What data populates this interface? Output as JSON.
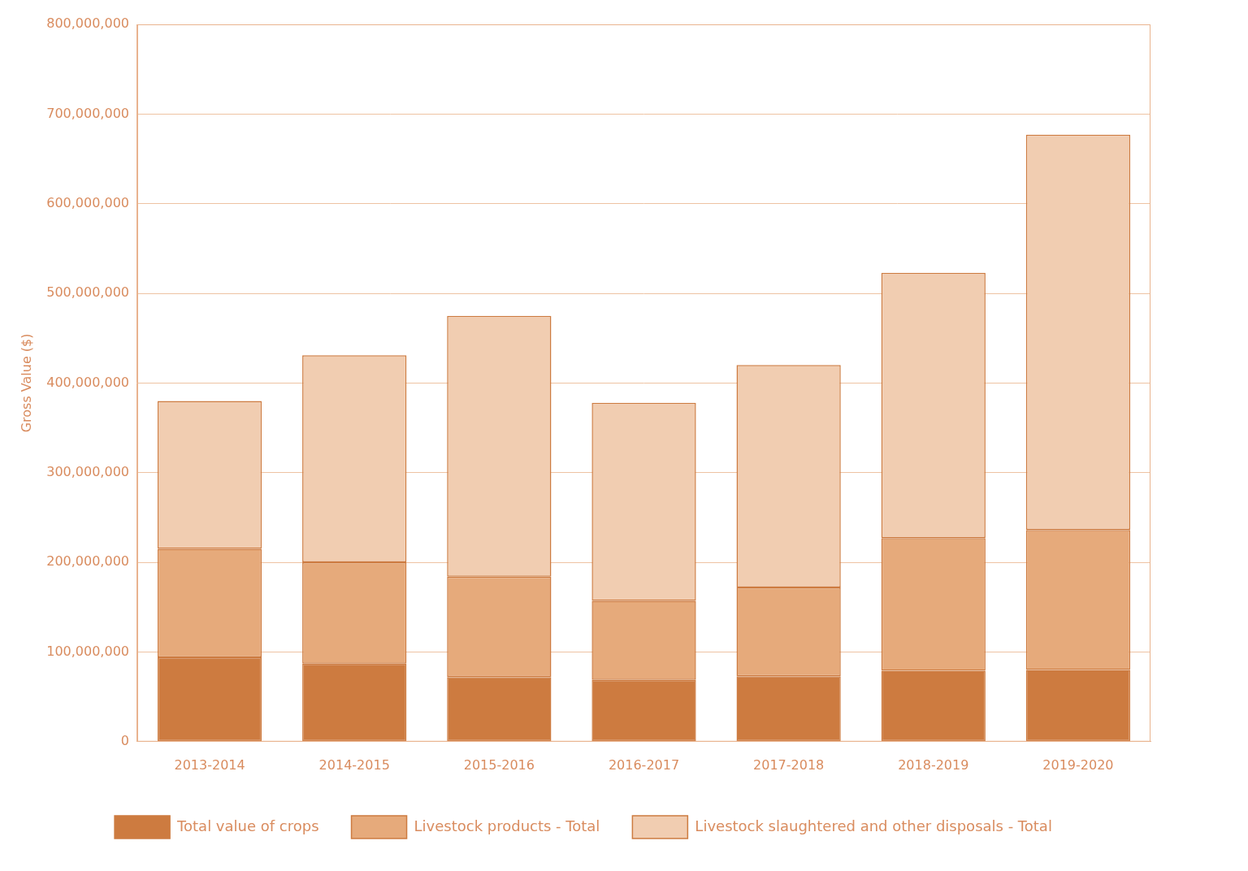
{
  "chart_data": {
    "type": "bar",
    "stacked": true,
    "grid": true,
    "legend": "bottom",
    "y_label": "Gross Value ($)",
    "categories": [
      "2013-2014",
      "2014-2015",
      "2015-2016",
      "2016-2017",
      "2017-2018",
      "2018-2019",
      "2019-2020"
    ],
    "series": [
      {
        "name": "Total value of crops",
        "color": "#cd7b40",
        "values": [
          94000000,
          87000000,
          72000000,
          69000000,
          73000000,
          79000000,
          80000000
        ]
      },
      {
        "name": "Livestock products - Total",
        "color": "#e6aa7b",
        "values": [
          121000000,
          113000000,
          112000000,
          88000000,
          99000000,
          148000000,
          156000000
        ]
      },
      {
        "name": "Livestock slaughtered and other disposals - Total",
        "color": "#f1cdb1",
        "values": [
          165000000,
          231000000,
          291000000,
          221000000,
          248000000,
          296000000,
          441000000
        ]
      }
    ],
    "ylim": [
      0,
      800000000
    ],
    "yticks": [
      0,
      {
        "value": 100000000,
        "label": "100,000,000"
      },
      {
        "value": 200000000,
        "label": "200,000,000"
      },
      {
        "value": 300000000,
        "label": "300,000,000"
      },
      {
        "value": 400000000,
        "label": "400,000,000"
      },
      {
        "value": 500000000,
        "label": "500,000,000"
      },
      {
        "value": 600000000,
        "label": "600,000,000"
      },
      {
        "value": 700000000,
        "label": "700,000,000"
      },
      {
        "value": 800000000,
        "label": "800,000,000"
      }
    ]
  }
}
